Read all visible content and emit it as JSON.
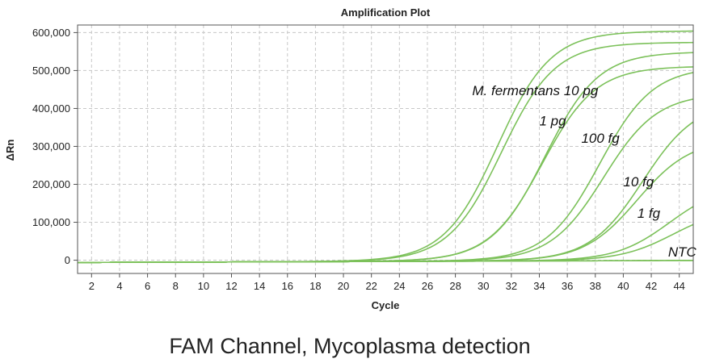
{
  "chart_data": {
    "type": "line",
    "title": "Amplification Plot",
    "xlabel": "Cycle",
    "ylabel": "ΔRn",
    "xlim": [
      1,
      45
    ],
    "ylim": [
      -35000,
      620000
    ],
    "x_ticks": [
      2,
      4,
      6,
      8,
      10,
      12,
      14,
      16,
      18,
      20,
      22,
      24,
      26,
      28,
      30,
      32,
      34,
      36,
      38,
      40,
      42,
      44
    ],
    "x_tick_labels": [
      "2",
      "4",
      "6",
      "8",
      "10",
      "12",
      "14",
      "16",
      "18",
      "20",
      "22",
      "24",
      "26",
      "28",
      "30",
      "32",
      "34",
      "36",
      "38",
      "40",
      "42",
      "44"
    ],
    "y_ticks": [
      0,
      100000,
      200000,
      300000,
      400000,
      500000,
      600000
    ],
    "y_tick_labels": [
      "0",
      "100,000",
      "200,000",
      "300,000",
      "400,000",
      "500,000",
      "600,000"
    ],
    "grid": true,
    "line_color": "#7cc15a",
    "series": [
      {
        "group": "M. fermentans 10 pg",
        "plateau": 605000,
        "midpoint": 31.0,
        "slope": 1.9
      },
      {
        "group": "M. fermentans 10 pg",
        "plateau": 575000,
        "midpoint": 31.3,
        "slope": 1.9
      },
      {
        "group": "1 pg",
        "plateau": 550000,
        "midpoint": 34.4,
        "slope": 1.9
      },
      {
        "group": "1 pg",
        "plateau": 512000,
        "midpoint": 34.2,
        "slope": 1.9
      },
      {
        "group": "100 fg",
        "plateau": 510000,
        "midpoint": 38.3,
        "slope": 1.9
      },
      {
        "group": "100 fg",
        "plateau": 440000,
        "midpoint": 38.6,
        "slope": 1.9
      },
      {
        "group": "10 fg",
        "plateau": 420000,
        "midpoint": 41.4,
        "slope": 1.9
      },
      {
        "group": "10 fg",
        "plateau": 320000,
        "midpoint": 41.0,
        "slope": 1.9
      },
      {
        "group": "1 fg",
        "plateau": 200000,
        "midpoint": 43.3,
        "slope": 1.9
      },
      {
        "group": "1 fg",
        "plateau": 140000,
        "midpoint": 43.6,
        "slope": 1.9
      },
      {
        "group": "NTC",
        "plateau": 0,
        "midpoint": 60,
        "slope": 2
      },
      {
        "group": "NTC",
        "plateau": 0,
        "midpoint": 60,
        "slope": 2
      }
    ],
    "annotations": [
      {
        "text": "M. fermentans 10 pg",
        "x": 29.2,
        "y": 435000
      },
      {
        "text": "1 pg",
        "x": 34.0,
        "y": 355000
      },
      {
        "text": "100 fg",
        "x": 37.0,
        "y": 310000
      },
      {
        "text": "10 fg",
        "x": 40.0,
        "y": 195000
      },
      {
        "text": "1 fg",
        "x": 41.0,
        "y": 112000
      },
      {
        "text": "NTC",
        "x": 43.2,
        "y": 10000
      }
    ]
  },
  "caption": "FAM Channel, Mycoplasma detection"
}
